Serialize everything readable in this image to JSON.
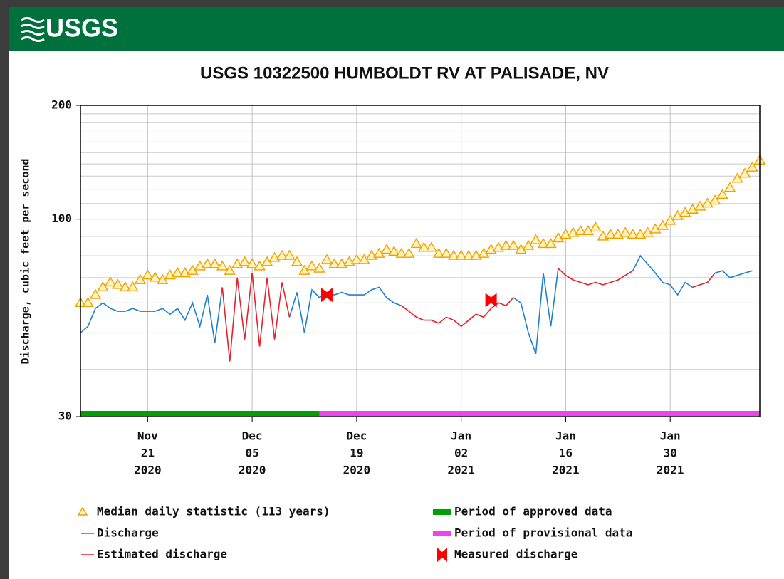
{
  "header": {
    "logo": "USGS"
  },
  "chart_data": {
    "type": "line",
    "title": "USGS 10322500 HUMBOLDT RV AT PALISADE, NV",
    "y_label": "Discharge, cubic feet per second",
    "log_scale": true,
    "ylim": [
      30,
      200
    ],
    "yticks": [
      30,
      100,
      200
    ],
    "y_minor_grid": [
      40,
      50,
      60,
      70,
      80,
      90,
      110,
      120,
      130,
      140,
      150,
      160,
      170,
      180,
      190
    ],
    "xlim": [
      "2020-11-12",
      "2021-02-11"
    ],
    "xticks": [
      {
        "value": "2020-11-21",
        "label": [
          "Nov",
          "21",
          "2020"
        ]
      },
      {
        "value": "2020-12-05",
        "label": [
          "Dec",
          "05",
          "2020"
        ]
      },
      {
        "value": "2020-12-19",
        "label": [
          "Dec",
          "19",
          "2020"
        ]
      },
      {
        "value": "2021-01-02",
        "label": [
          "Jan",
          "02",
          "2021"
        ]
      },
      {
        "value": "2021-01-16",
        "label": [
          "Jan",
          "16",
          "2021"
        ]
      },
      {
        "value": "2021-01-30",
        "label": [
          "Jan",
          "30",
          "2021"
        ]
      }
    ],
    "grid": true,
    "x": [
      "2020-11-12",
      "2020-11-13",
      "2020-11-14",
      "2020-11-15",
      "2020-11-16",
      "2020-11-17",
      "2020-11-18",
      "2020-11-19",
      "2020-11-20",
      "2020-11-21",
      "2020-11-22",
      "2020-11-23",
      "2020-11-24",
      "2020-11-25",
      "2020-11-26",
      "2020-11-27",
      "2020-11-28",
      "2020-11-29",
      "2020-11-30",
      "2020-12-01",
      "2020-12-02",
      "2020-12-03",
      "2020-12-04",
      "2020-12-05",
      "2020-12-06",
      "2020-12-07",
      "2020-12-08",
      "2020-12-09",
      "2020-12-10",
      "2020-12-11",
      "2020-12-12",
      "2020-12-13",
      "2020-12-14",
      "2020-12-15",
      "2020-12-16",
      "2020-12-17",
      "2020-12-18",
      "2020-12-19",
      "2020-12-20",
      "2020-12-21",
      "2020-12-22",
      "2020-12-23",
      "2020-12-24",
      "2020-12-25",
      "2020-12-26",
      "2020-12-27",
      "2020-12-28",
      "2020-12-29",
      "2020-12-30",
      "2020-12-31",
      "2021-01-01",
      "2021-01-02",
      "2021-01-03",
      "2021-01-04",
      "2021-01-05",
      "2021-01-06",
      "2021-01-07",
      "2021-01-08",
      "2021-01-09",
      "2021-01-10",
      "2021-01-11",
      "2021-01-12",
      "2021-01-13",
      "2021-01-14",
      "2021-01-15",
      "2021-01-16",
      "2021-01-17",
      "2021-01-18",
      "2021-01-19",
      "2021-01-20",
      "2021-01-21",
      "2021-01-22",
      "2021-01-23",
      "2021-01-24",
      "2021-01-25",
      "2021-01-26",
      "2021-01-27",
      "2021-01-28",
      "2021-01-29",
      "2021-01-30",
      "2021-01-31",
      "2021-02-01",
      "2021-02-02",
      "2021-02-03",
      "2021-02-04",
      "2021-02-05",
      "2021-02-06",
      "2021-02-07",
      "2021-02-08",
      "2021-02-09",
      "2021-02-10",
      "2021-02-11"
    ],
    "series": [
      {
        "name": "Median daily statistic (113 years)",
        "color": "#f0a000",
        "marker": "triangle",
        "values": [
          60,
          60,
          63,
          66,
          68,
          67,
          66,
          66,
          69,
          71,
          70,
          69,
          71,
          72,
          72,
          73,
          75,
          76,
          76,
          75,
          73,
          76,
          77,
          76,
          75,
          77,
          79,
          80,
          80,
          77,
          73,
          75,
          74,
          78,
          76,
          76,
          77,
          78,
          78,
          80,
          81,
          83,
          82,
          81,
          81,
          86,
          84,
          84,
          81,
          81,
          80,
          80,
          80,
          80,
          81,
          83,
          84,
          85,
          85,
          83,
          85,
          88,
          86,
          86,
          89,
          91,
          92,
          93,
          93,
          95,
          90,
          91,
          91,
          92,
          91,
          91,
          92,
          94,
          96,
          99,
          102,
          104,
          106,
          108,
          110,
          112,
          116,
          121,
          128,
          132,
          137,
          143
        ]
      },
      {
        "name": "Discharge",
        "color": "#1f7fd0",
        "values": [
          50,
          52,
          58,
          60,
          58,
          57,
          57,
          58,
          57,
          57,
          57,
          58,
          56,
          58,
          54,
          60,
          52,
          63,
          47,
          66,
          null,
          null,
          null,
          null,
          null,
          null,
          null,
          null,
          55,
          64,
          50,
          65,
          62,
          64,
          63,
          64,
          63,
          63,
          63,
          65,
          66,
          62,
          60,
          59,
          null,
          null,
          null,
          null,
          null,
          null,
          null,
          null,
          null,
          null,
          null,
          null,
          null,
          null,
          62,
          60,
          50,
          44,
          72,
          52,
          74,
          null,
          null,
          null,
          null,
          null,
          null,
          null,
          null,
          null,
          73,
          80,
          76,
          72,
          68,
          67,
          63,
          68,
          66,
          null,
          null,
          72,
          73,
          70,
          71,
          72,
          73,
          null
        ]
      },
      {
        "name": "Estimated discharge",
        "color": "#e8202a",
        "values": [
          null,
          null,
          null,
          null,
          null,
          null,
          null,
          null,
          null,
          null,
          null,
          null,
          null,
          null,
          null,
          null,
          null,
          null,
          null,
          66,
          42,
          70,
          48,
          72,
          46,
          70,
          48,
          68,
          55,
          null,
          null,
          null,
          null,
          null,
          null,
          null,
          null,
          null,
          null,
          null,
          null,
          null,
          null,
          59,
          57,
          55,
          54,
          54,
          53,
          55,
          54,
          52,
          54,
          56,
          55,
          58,
          60,
          59,
          62,
          null,
          null,
          null,
          null,
          null,
          74,
          71,
          69,
          68,
          67,
          68,
          67,
          68,
          69,
          71,
          73,
          null,
          null,
          null,
          null,
          null,
          null,
          null,
          66,
          67,
          68,
          72,
          null,
          null,
          null,
          null,
          null,
          null
        ]
      }
    ],
    "measured": {
      "name": "Measured discharge",
      "color": "#ff0000",
      "x": [
        "2020-12-15",
        "2021-01-06"
      ],
      "values": [
        63,
        61
      ]
    },
    "periods": [
      {
        "name": "Period of approved data",
        "color": "#00a000",
        "start": "2020-11-12",
        "end": "2020-12-14"
      },
      {
        "name": "Period of provisional data",
        "color": "#ee44ee",
        "start": "2020-12-14",
        "end": "2021-02-11"
      }
    ]
  }
}
